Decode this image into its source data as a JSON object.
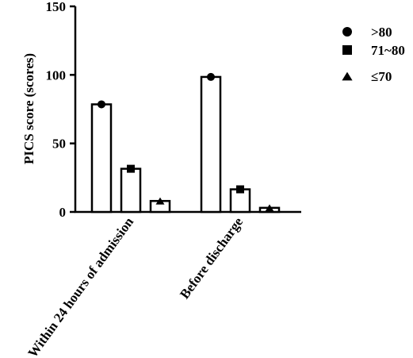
{
  "chart_data": {
    "type": "bar",
    "ylabel": "PICS score (scores)",
    "xlabel": "",
    "ylim": [
      0,
      150
    ],
    "yticks": [
      0,
      50,
      100,
      150
    ],
    "grid": false,
    "legend_position": "top-right",
    "categories": [
      "Within 24 hours of admission",
      "Before discharge"
    ],
    "series": [
      {
        "name": ">80",
        "marker": "circle",
        "values": [
          78.5,
          98.5
        ]
      },
      {
        "name": "71~80",
        "marker": "square",
        "values": [
          31.5,
          16.5
        ]
      },
      {
        "name": "≤70",
        "marker": "triangle",
        "values": [
          8,
          3
        ]
      }
    ],
    "colors": {
      "bar_fill": "#ffffff",
      "stroke": "#000000"
    }
  }
}
